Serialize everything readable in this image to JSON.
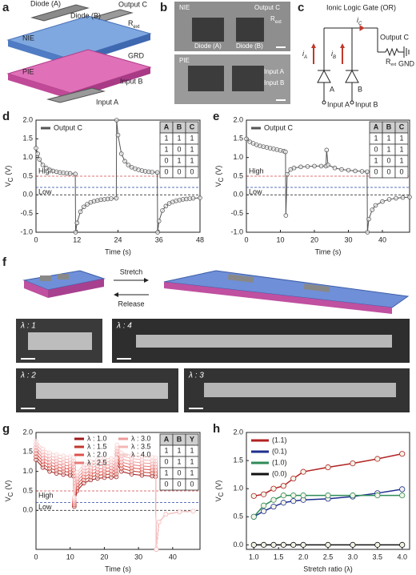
{
  "panel_a": {
    "label": "a",
    "diode_a": "Diode (A)",
    "diode_b": "Diode (B)",
    "output": "Output C",
    "resistor": {
      "main": "R",
      "sub": "ext"
    },
    "nie": "NIE",
    "pie": "PIE",
    "grd": "GRD",
    "input_b": "Input B",
    "input_a": "Input A"
  },
  "panel_b": {
    "label": "b",
    "nie": "NIE",
    "output": "Output C",
    "resistor": {
      "main": "R",
      "sub": "ext"
    },
    "diode_a": "Diode (A)",
    "diode_b": "Diode (B)",
    "pie": "PIE",
    "input_a": "Input A",
    "input_b": "Input B"
  },
  "panel_c": {
    "label": "c",
    "title": "Ionic Logic Gate (OR)",
    "current_c": {
      "main": "i",
      "sub": "C"
    },
    "output": "Output C",
    "current_a": {
      "main": "i",
      "sub": "A"
    },
    "current_b": {
      "main": "i",
      "sub": "B"
    },
    "resistor": {
      "main": "R",
      "sub": "ext"
    },
    "gnd": "GND",
    "diode_a": "A",
    "diode_b": "B",
    "input_a": "Input A",
    "input_b": "Input B"
  },
  "panel_f": {
    "label": "f",
    "stretch": "Stretch",
    "release": "Release",
    "photos": [
      "λ : 1",
      "λ : 4",
      "λ : 2",
      "λ : 3"
    ]
  },
  "chart_data": [
    {
      "type": "line",
      "panel_label": "d",
      "xlabel": "Time (s)",
      "ylabel": {
        "main": "V",
        "sub": "C",
        "unit": "(V)"
      },
      "xlim": [
        0,
        48
      ],
      "xticks": [
        0,
        12,
        24,
        36,
        48
      ],
      "ylim": [
        -1,
        2
      ],
      "yticks": [
        {
          "value": -1,
          "label": "-1.0"
        },
        -0.5,
        {
          "value": 0,
          "label": "0.0"
        },
        0.5,
        {
          "value": 1,
          "label": "1.0"
        },
        1.5,
        {
          "value": 2,
          "label": "2.0"
        }
      ],
      "thresholds": [
        {
          "label": "High",
          "value": 0.5,
          "color": "#d04545",
          "label_position": "above"
        },
        {
          "label": "Low",
          "value": 0.2,
          "color": "#2a45a0",
          "label_position": "below"
        }
      ],
      "zero_line": true,
      "legend_position": "upper left",
      "marker": "open-circle",
      "series": [
        {
          "name": "Output C",
          "color": "#555555",
          "x": [
            0,
            0.5,
            1,
            2,
            3,
            4,
            5,
            6,
            7,
            8,
            9,
            10,
            11.5,
            11.6,
            12,
            13,
            14,
            15,
            16,
            17,
            18,
            19,
            20,
            21,
            22,
            23.5,
            23.6,
            24,
            25,
            26,
            27,
            28,
            29,
            30,
            31,
            32,
            33,
            34,
            35.5,
            35.6,
            36,
            37,
            38,
            39,
            40,
            41,
            42,
            43,
            44,
            45,
            46,
            48
          ],
          "values": [
            1.25,
            1.1,
            0.95,
            0.8,
            0.72,
            0.67,
            0.64,
            0.62,
            0.6,
            0.59,
            0.58,
            0.57,
            0.56,
            -1.0,
            -0.75,
            -0.45,
            -0.32,
            -0.25,
            -0.2,
            -0.17,
            -0.15,
            -0.13,
            -0.12,
            -0.11,
            -0.1,
            -0.09,
            2.0,
            1.6,
            1.1,
            0.9,
            0.8,
            0.74,
            0.7,
            0.67,
            0.65,
            0.63,
            0.62,
            0.61,
            0.6,
            -1.0,
            -0.7,
            -0.42,
            -0.3,
            -0.23,
            -0.19,
            -0.16,
            -0.14,
            -0.12,
            -0.11,
            -0.1,
            -0.09,
            -0.08
          ]
        }
      ],
      "truth_table": {
        "header": [
          "A",
          "B",
          "C"
        ],
        "rows": [
          [
            1,
            1,
            1
          ],
          [
            1,
            0,
            1
          ],
          [
            0,
            1,
            1
          ],
          [
            0,
            0,
            0
          ]
        ]
      }
    },
    {
      "type": "line",
      "panel_label": "e",
      "xlabel": "Time (s)",
      "ylabel": {
        "main": "V",
        "sub": "C",
        "unit": "(V)"
      },
      "xlim": [
        0,
        48
      ],
      "xticks": [
        0,
        10,
        20,
        30,
        40
      ],
      "ylim": [
        -1,
        2
      ],
      "yticks": [
        {
          "value": -1,
          "label": "-1.0"
        },
        -0.5,
        {
          "value": 0,
          "label": "0.0"
        },
        0.5,
        {
          "value": 1,
          "label": "1.0"
        },
        1.5,
        {
          "value": 2,
          "label": "2.0"
        }
      ],
      "thresholds": [
        {
          "label": "High",
          "value": 0.5,
          "color": "#d04545",
          "label_position": "above"
        },
        {
          "label": "Low",
          "value": 0.2,
          "color": "#2a45a0",
          "label_position": "below"
        }
      ],
      "zero_line": true,
      "legend_position": "upper left",
      "marker": "open-circle",
      "series": [
        {
          "name": "Output C",
          "color": "#555555",
          "x": [
            0,
            1,
            2,
            3,
            4,
            5,
            6,
            7,
            8,
            9,
            10,
            11,
            11.5,
            11.6,
            12,
            13,
            14,
            16,
            18,
            20,
            22,
            23.4,
            23.6,
            24,
            26,
            28,
            30,
            32,
            34,
            35.5,
            35.6,
            36,
            37,
            38,
            40,
            42,
            44,
            46,
            48
          ],
          "values": [
            1.5,
            1.42,
            1.38,
            1.34,
            1.31,
            1.29,
            1.27,
            1.25,
            1.23,
            1.21,
            1.19,
            1.17,
            1.15,
            -0.55,
            0.55,
            0.68,
            0.72,
            0.75,
            0.76,
            0.77,
            0.77,
            0.77,
            1.2,
            0.8,
            0.72,
            0.68,
            0.66,
            0.64,
            0.63,
            0.62,
            -1.0,
            -0.65,
            -0.4,
            -0.28,
            -0.18,
            -0.12,
            -0.09,
            -0.07,
            -0.06
          ]
        }
      ],
      "truth_table": {
        "header": [
          "A",
          "B",
          "C"
        ],
        "rows": [
          [
            1,
            1,
            1
          ],
          [
            0,
            1,
            1
          ],
          [
            1,
            0,
            1
          ],
          [
            0,
            0,
            0
          ]
        ]
      }
    },
    {
      "type": "line",
      "panel_label": "g",
      "xlabel": "Time (s)",
      "ylabel": {
        "main": "V",
        "sub": "C",
        "unit": "(V)"
      },
      "xlim": [
        0,
        48
      ],
      "xticks": [
        0,
        10,
        20,
        30,
        40
      ],
      "ylim": [
        -1,
        2
      ],
      "yticks": [
        {
          "value": 0,
          "label": "0.0"
        },
        0.5,
        {
          "value": 1,
          "label": "1.0"
        },
        1.5,
        {
          "value": 2,
          "label": "2.0"
        }
      ],
      "thresholds": [
        {
          "label": "High",
          "value": 0.5,
          "color": "#d04545",
          "label_position": "below"
        },
        {
          "label": "Low",
          "value": 0.2,
          "color": "#2a45a0",
          "label_position": "below"
        }
      ],
      "zero_line": true,
      "legend_position": "upper center",
      "marker": "open-circle",
      "x": [
        0,
        2,
        4,
        6,
        8,
        10,
        11,
        11.2,
        12,
        14,
        16,
        18,
        20,
        22,
        23.5,
        23.7,
        25,
        28,
        31,
        34,
        35,
        35.2,
        36,
        38,
        42,
        46
      ],
      "series": [
        {
          "name": "λ : 1.0",
          "color": "#9e1b1b",
          "values": [
            1.3,
            1.1,
            1.0,
            0.95,
            0.92,
            0.9,
            0.88,
            0.1,
            0.5,
            0.7,
            0.78,
            0.82,
            0.84,
            0.85,
            0.86,
            1.2,
            1.0,
            0.93,
            0.9,
            0.88,
            0.87,
            -1.0,
            -0.3,
            -0.1,
            -0.04,
            -0.02
          ]
        },
        {
          "name": "λ : 1.5",
          "color": "#c0392b",
          "values": [
            1.38,
            1.18,
            1.08,
            1.03,
            1.0,
            0.98,
            0.96,
            0.14,
            0.58,
            0.78,
            0.86,
            0.9,
            0.92,
            0.93,
            0.94,
            1.28,
            1.08,
            1.01,
            0.98,
            0.96,
            0.95,
            -1.0,
            -0.3,
            -0.1,
            -0.04,
            -0.02
          ]
        },
        {
          "name": "λ : 2.0",
          "color": "#e0504a",
          "values": [
            1.46,
            1.26,
            1.16,
            1.11,
            1.08,
            1.06,
            1.04,
            0.18,
            0.66,
            0.86,
            0.94,
            0.98,
            1.0,
            1.01,
            1.02,
            1.36,
            1.16,
            1.09,
            1.06,
            1.04,
            1.03,
            -1.0,
            -0.3,
            -0.1,
            -0.04,
            -0.02
          ]
        },
        {
          "name": "λ : 2.5",
          "color": "#e87a7a",
          "values": [
            1.54,
            1.34,
            1.24,
            1.19,
            1.16,
            1.14,
            1.12,
            0.22,
            0.74,
            0.94,
            1.02,
            1.06,
            1.08,
            1.09,
            1.1,
            1.44,
            1.24,
            1.17,
            1.14,
            1.12,
            1.11,
            -1.0,
            -0.3,
            -0.1,
            -0.04,
            -0.02
          ]
        },
        {
          "name": "λ : 3.0",
          "color": "#ef9a9a",
          "values": [
            1.62,
            1.42,
            1.32,
            1.27,
            1.24,
            1.22,
            1.2,
            0.26,
            0.82,
            1.02,
            1.1,
            1.14,
            1.16,
            1.17,
            1.18,
            1.52,
            1.32,
            1.25,
            1.22,
            1.2,
            1.19,
            -1.0,
            -0.3,
            -0.1,
            -0.04,
            -0.02
          ]
        },
        {
          "name": "λ : 3.5",
          "color": "#f4b6b6",
          "values": [
            1.7,
            1.5,
            1.4,
            1.35,
            1.32,
            1.3,
            1.28,
            0.3,
            0.9,
            1.1,
            1.18,
            1.22,
            1.24,
            1.25,
            1.26,
            1.6,
            1.4,
            1.33,
            1.3,
            1.28,
            1.27,
            -1.0,
            -0.3,
            -0.1,
            -0.04,
            -0.02
          ]
        },
        {
          "name": "λ : 4.0",
          "color": "#f8cfcf",
          "values": [
            1.78,
            1.58,
            1.48,
            1.43,
            1.4,
            1.38,
            1.36,
            0.34,
            0.98,
            1.18,
            1.26,
            1.3,
            1.32,
            1.33,
            1.34,
            1.68,
            1.48,
            1.41,
            1.38,
            1.36,
            1.35,
            -1.0,
            -0.3,
            -0.1,
            -0.04,
            -0.02
          ]
        }
      ],
      "truth_table": {
        "header": [
          "A",
          "B",
          "Y"
        ],
        "rows": [
          [
            1,
            1,
            1
          ],
          [
            0,
            1,
            1
          ],
          [
            1,
            0,
            1
          ],
          [
            0,
            0,
            0
          ]
        ]
      }
    },
    {
      "type": "line",
      "panel_label": "h",
      "xlabel": "Stretch ratio (λ)",
      "ylabel": {
        "main": "V",
        "sub": "C",
        "unit": "(V)"
      },
      "xlim": [
        0.85,
        4.15
      ],
      "xticks": [
        {
          "value": 1,
          "label": "1.0"
        },
        1.5,
        {
          "value": 2,
          "label": "2.0"
        },
        2.5,
        {
          "value": 3,
          "label": "3.0"
        },
        3.5,
        {
          "value": 4,
          "label": "4.0"
        }
      ],
      "ylim": [
        -0.08,
        2
      ],
      "yticks": [
        {
          "value": 0,
          "label": "0.0"
        },
        0.5,
        {
          "value": 1,
          "label": "1.0"
        },
        1.5,
        {
          "value": 2,
          "label": "2.0"
        }
      ],
      "legend_position": "upper left",
      "marker": "filled-circle",
      "x": [
        1.0,
        1.2,
        1.4,
        1.6,
        1.8,
        2.0,
        2.5,
        3.0,
        3.5,
        4.0
      ],
      "series": [
        {
          "name": "(1.1)",
          "color": "#b22222",
          "values": [
            0.87,
            0.9,
            1.0,
            1.05,
            1.18,
            1.3,
            1.38,
            1.45,
            1.53,
            1.62
          ]
        },
        {
          "name": "(0.1)",
          "color": "#1f2f8f",
          "values": [
            0.5,
            0.6,
            0.68,
            0.75,
            0.78,
            0.8,
            0.82,
            0.86,
            0.92,
            0.99
          ]
        },
        {
          "name": "(1.0)",
          "color": "#2e8b57",
          "values": [
            0.5,
            0.7,
            0.8,
            0.88,
            0.88,
            0.88,
            0.88,
            0.88,
            0.88,
            0.88
          ]
        },
        {
          "name": "(0.0)",
          "color": "#111111",
          "values": [
            0,
            0,
            0,
            0,
            0,
            0,
            0,
            0,
            0,
            0
          ]
        }
      ]
    }
  ]
}
